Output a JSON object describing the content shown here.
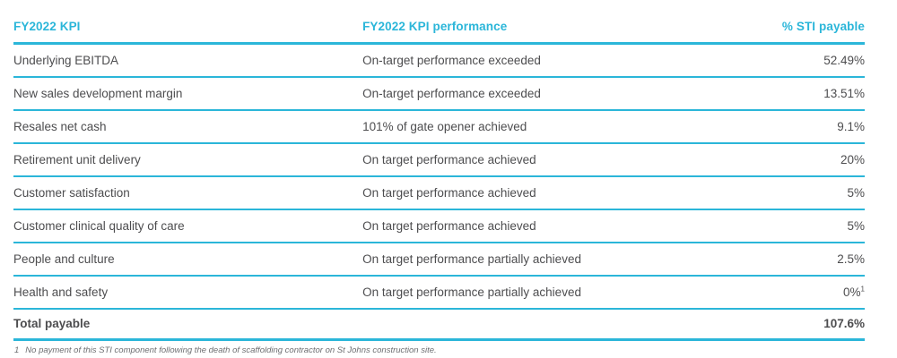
{
  "colors": {
    "accent": "#2bb6d9",
    "body_text": "#4d4d4f",
    "footnote_text": "#6d6e71"
  },
  "table": {
    "columns": [
      {
        "label": "FY2022 KPI"
      },
      {
        "label": "FY2022 KPI performance"
      },
      {
        "label": "% STI payable"
      }
    ],
    "rows": [
      {
        "kpi": "Underlying EBITDA",
        "performance": "On-target performance exceeded",
        "payable": "52.49%"
      },
      {
        "kpi": "New sales development margin",
        "performance": "On-target performance exceeded",
        "payable": "13.51%"
      },
      {
        "kpi": "Resales net cash",
        "performance": "101% of gate opener achieved",
        "payable": "9.1%"
      },
      {
        "kpi": "Retirement unit delivery",
        "performance": "On target performance achieved",
        "payable": "20%"
      },
      {
        "kpi": "Customer satisfaction",
        "performance": "On target performance achieved",
        "payable": "5%"
      },
      {
        "kpi": "Customer clinical quality of care",
        "performance": "On target performance achieved",
        "payable": "5%"
      },
      {
        "kpi": "People and culture",
        "performance": "On target performance partially achieved",
        "payable": "2.5%"
      },
      {
        "kpi": "Health and safety",
        "performance": "On target performance partially achieved",
        "payable": "0%",
        "footnote_marker": "1"
      }
    ],
    "total": {
      "label": "Total payable",
      "payable": "107.6%"
    },
    "footnote": {
      "marker": "1",
      "text": "No payment of this STI component following the death of scaffolding contractor on St Johns construction site."
    }
  }
}
